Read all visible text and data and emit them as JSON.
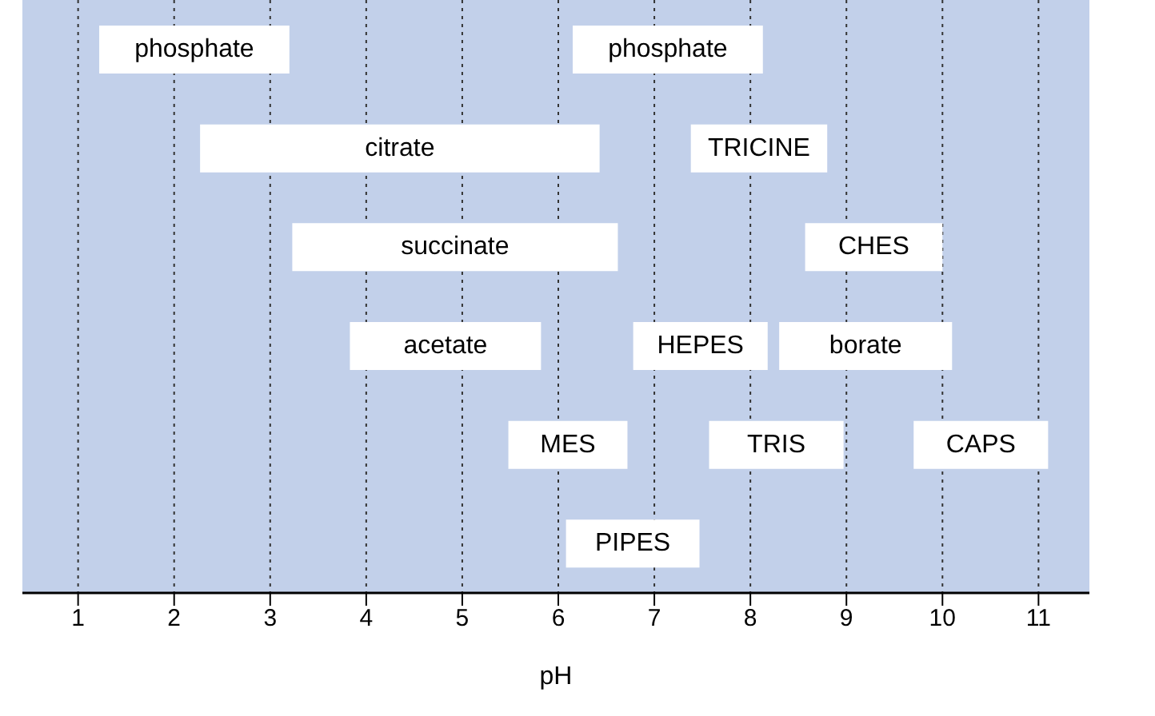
{
  "chart_data": {
    "type": "bar",
    "orientation": "horizontal",
    "xlabel": "pH",
    "categories": [
      null,
      null,
      null,
      null,
      null,
      null
    ],
    "xlim": [
      0.42,
      11.53
    ],
    "xticks": [
      1,
      2,
      3,
      4,
      5,
      6,
      7,
      8,
      9,
      10,
      11
    ],
    "grid": "x",
    "legend": false,
    "series": [
      {
        "name": "phosphate",
        "color": "#ffffff",
        "base": [
          1.22,
          null,
          null,
          null,
          null,
          null
        ],
        "values": [
          1.98,
          null,
          null,
          null,
          null,
          null
        ]
      },
      {
        "name": "phosphate",
        "color": "#ffffff",
        "base": [
          6.15,
          null,
          null,
          null,
          null,
          null
        ],
        "values": [
          1.98,
          null,
          null,
          null,
          null,
          null
        ]
      },
      {
        "name": "citrate",
        "color": "#ffffff",
        "base": [
          null,
          2.27,
          null,
          null,
          null,
          null
        ],
        "values": [
          null,
          4.16,
          null,
          null,
          null,
          null
        ]
      },
      {
        "name": "TRICINE",
        "color": "#ffffff",
        "base": [
          null,
          7.38,
          null,
          null,
          null,
          null
        ],
        "values": [
          null,
          1.42,
          null,
          null,
          null,
          null
        ]
      },
      {
        "name": "succinate",
        "color": "#ffffff",
        "base": [
          null,
          null,
          3.23,
          null,
          null,
          null
        ],
        "values": [
          null,
          null,
          3.39,
          null,
          null,
          null
        ]
      },
      {
        "name": "CHES",
        "color": "#ffffff",
        "base": [
          null,
          null,
          8.57,
          null,
          null,
          null
        ],
        "values": [
          null,
          null,
          1.43,
          null,
          null,
          null
        ]
      },
      {
        "name": "acetate",
        "color": "#ffffff",
        "base": [
          null,
          null,
          null,
          3.83,
          null,
          null
        ],
        "values": [
          null,
          null,
          null,
          1.99,
          null,
          null
        ]
      },
      {
        "name": "HEPES",
        "color": "#ffffff",
        "base": [
          null,
          null,
          null,
          6.78,
          null,
          null
        ],
        "values": [
          null,
          null,
          null,
          1.4,
          null,
          null
        ]
      },
      {
        "name": "borate",
        "color": "#ffffff",
        "base": [
          null,
          null,
          null,
          8.3,
          null,
          null
        ],
        "values": [
          null,
          null,
          null,
          1.8,
          null,
          null
        ]
      },
      {
        "name": "MES",
        "color": "#ffffff",
        "base": [
          null,
          null,
          null,
          null,
          5.48,
          null
        ],
        "values": [
          null,
          null,
          null,
          null,
          1.24,
          null
        ]
      },
      {
        "name": "TRIS",
        "color": "#ffffff",
        "base": [
          null,
          null,
          null,
          null,
          7.57,
          null
        ],
        "values": [
          null,
          null,
          null,
          null,
          1.4,
          null
        ]
      },
      {
        "name": "CAPS",
        "color": "#ffffff",
        "base": [
          null,
          null,
          null,
          null,
          9.7,
          null
        ],
        "values": [
          null,
          null,
          null,
          null,
          1.4,
          null
        ]
      },
      {
        "name": "PIPES",
        "color": "#ffffff",
        "base": [
          null,
          null,
          null,
          null,
          null,
          6.08
        ],
        "values": [
          null,
          null,
          null,
          null,
          null,
          1.39
        ]
      }
    ]
  }
}
